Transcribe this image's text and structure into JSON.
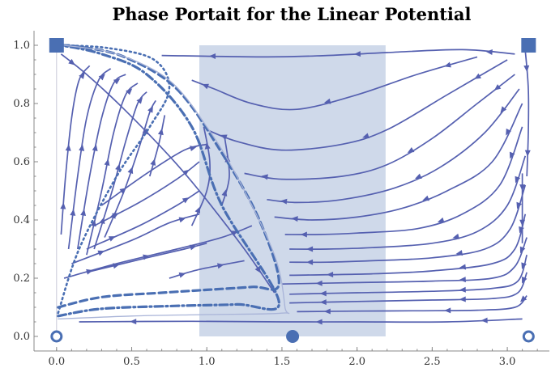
{
  "chart_data": {
    "type": "streamplot",
    "title": "Phase Portait for the Linear Potential",
    "xlabel": "",
    "ylabel": "",
    "xlim": [
      -0.15,
      3.28
    ],
    "ylim": [
      -0.05,
      1.05
    ],
    "x_ticks": [
      0.0,
      0.5,
      1.0,
      1.5,
      2.0,
      2.5,
      3.0
    ],
    "x_tick_labels": [
      "0.0",
      "0.5",
      "1.0",
      "1.5",
      "2.0",
      "2.5",
      "3.0"
    ],
    "y_ticks": [
      0.0,
      0.2,
      0.4,
      0.6,
      0.8,
      1.0
    ],
    "y_tick_labels": [
      "0.0",
      "0.2",
      "0.4",
      "0.6",
      "0.8",
      "1.0"
    ],
    "shaded_region": {
      "x": [
        0.95,
        2.19
      ],
      "y": [
        0.0,
        1.0
      ],
      "color": "#cfd9ea"
    },
    "fixed_points": [
      {
        "x": 0.0,
        "y": 0.0,
        "marker": "open-circle"
      },
      {
        "x": 1.5708,
        "y": 0.0,
        "marker": "filled-circle"
      },
      {
        "x": 3.1416,
        "y": 0.0,
        "marker": "open-circle"
      },
      {
        "x": 0.0,
        "y": 1.0,
        "marker": "filled-square"
      },
      {
        "x": 3.1416,
        "y": 1.0,
        "marker": "filled-square"
      }
    ],
    "special_curves": [
      {
        "style": "dashed",
        "points": [
          [
            0.01,
            0.1
          ],
          [
            0.3,
            0.135
          ],
          [
            0.7,
            0.15
          ],
          [
            1.0,
            0.16
          ],
          [
            1.3,
            0.17
          ],
          [
            1.48,
            0.18
          ],
          [
            1.35,
            0.4
          ],
          [
            1.1,
            0.63
          ],
          [
            0.8,
            0.85
          ],
          [
            0.45,
            0.96
          ],
          [
            0.15,
            0.995
          ],
          [
            0.02,
            1.0
          ]
        ]
      },
      {
        "style": "dash-dot",
        "points": [
          [
            0.01,
            0.07
          ],
          [
            0.3,
            0.095
          ],
          [
            0.8,
            0.105
          ],
          [
            1.2,
            0.11
          ],
          [
            1.48,
            0.12
          ],
          [
            1.1,
            0.45
          ],
          [
            0.9,
            0.72
          ],
          [
            0.6,
            0.9
          ],
          [
            0.3,
            0.97
          ],
          [
            0.03,
            1.0
          ]
        ]
      },
      {
        "style": "dotted",
        "points": [
          [
            0.01,
            0.08
          ],
          [
            0.15,
            0.3
          ],
          [
            0.4,
            0.55
          ],
          [
            0.62,
            0.72
          ],
          [
            0.75,
            0.85
          ],
          [
            0.65,
            0.95
          ],
          [
            0.35,
            0.99
          ],
          [
            0.03,
            1.0
          ]
        ]
      },
      {
        "style": "solid-light",
        "points": [
          [
            0.01,
            0.06
          ],
          [
            0.5,
            0.07
          ],
          [
            1.0,
            0.075
          ],
          [
            1.5,
            0.08
          ],
          [
            1.52,
            0.1
          ],
          [
            1.45,
            0.28
          ],
          [
            1.2,
            0.55
          ],
          [
            1.0,
            0.72
          ],
          [
            0.75,
            0.88
          ],
          [
            0.4,
            0.97
          ],
          [
            0.05,
            1.0
          ]
        ]
      }
    ],
    "stream_lines": [
      [
        [
          3.05,
          0.97
        ],
        [
          2.7,
          0.985
        ],
        [
          2.2,
          0.975
        ],
        [
          1.8,
          0.965
        ],
        [
          1.4,
          0.96
        ],
        [
          0.7,
          0.965
        ]
      ],
      [
        [
          2.8,
          0.96
        ],
        [
          2.4,
          0.9
        ],
        [
          2.0,
          0.83
        ],
        [
          1.6,
          0.78
        ],
        [
          1.3,
          0.8
        ],
        [
          1.05,
          0.85
        ],
        [
          0.9,
          0.88
        ]
      ],
      [
        [
          3.0,
          0.95
        ],
        [
          2.6,
          0.83
        ],
        [
          2.2,
          0.71
        ],
        [
          1.9,
          0.66
        ],
        [
          1.5,
          0.64
        ],
        [
          1.2,
          0.67
        ],
        [
          1.0,
          0.71
        ]
      ],
      [
        [
          3.05,
          0.9
        ],
        [
          2.8,
          0.8
        ],
        [
          2.5,
          0.68
        ],
        [
          2.2,
          0.59
        ],
        [
          1.9,
          0.55
        ],
        [
          1.5,
          0.54
        ],
        [
          1.25,
          0.56
        ]
      ],
      [
        [
          3.08,
          0.85
        ],
        [
          2.85,
          0.7
        ],
        [
          2.55,
          0.58
        ],
        [
          2.25,
          0.51
        ],
        [
          1.9,
          0.47
        ],
        [
          1.6,
          0.46
        ],
        [
          1.4,
          0.47
        ]
      ],
      [
        [
          3.1,
          0.8
        ],
        [
          2.9,
          0.6
        ],
        [
          2.6,
          0.5
        ],
        [
          2.3,
          0.44
        ],
        [
          2.0,
          0.41
        ],
        [
          1.7,
          0.4
        ],
        [
          1.45,
          0.41
        ]
      ],
      [
        [
          3.1,
          0.72
        ],
        [
          2.95,
          0.52
        ],
        [
          2.7,
          0.42
        ],
        [
          2.4,
          0.37
        ],
        [
          2.0,
          0.355
        ],
        [
          1.75,
          0.35
        ],
        [
          1.52,
          0.35
        ]
      ],
      [
        [
          3.12,
          0.62
        ],
        [
          3.0,
          0.45
        ],
        [
          2.8,
          0.36
        ],
        [
          2.5,
          0.32
        ],
        [
          2.1,
          0.305
        ],
        [
          1.8,
          0.3
        ],
        [
          1.55,
          0.3
        ]
      ],
      [
        [
          3.12,
          0.52
        ],
        [
          3.02,
          0.37
        ],
        [
          2.85,
          0.3
        ],
        [
          2.5,
          0.27
        ],
        [
          2.1,
          0.26
        ],
        [
          1.8,
          0.255
        ],
        [
          1.55,
          0.255
        ]
      ],
      [
        [
          3.12,
          0.42
        ],
        [
          3.05,
          0.3
        ],
        [
          2.9,
          0.25
        ],
        [
          2.5,
          0.225
        ],
        [
          2.1,
          0.215
        ],
        [
          1.55,
          0.21
        ]
      ],
      [
        [
          3.13,
          0.34
        ],
        [
          3.05,
          0.24
        ],
        [
          2.9,
          0.2
        ],
        [
          2.5,
          0.19
        ],
        [
          2.0,
          0.185
        ],
        [
          1.5,
          0.18
        ]
      ],
      [
        [
          3.13,
          0.28
        ],
        [
          3.07,
          0.19
        ],
        [
          2.9,
          0.165
        ],
        [
          2.5,
          0.155
        ],
        [
          2.0,
          0.15
        ],
        [
          1.55,
          0.145
        ]
      ],
      [
        [
          3.13,
          0.22
        ],
        [
          3.07,
          0.15
        ],
        [
          2.9,
          0.13
        ],
        [
          2.5,
          0.125
        ],
        [
          2.0,
          0.12
        ],
        [
          1.55,
          0.115
        ]
      ],
      [
        [
          3.13,
          0.14
        ],
        [
          3.05,
          0.1
        ],
        [
          2.8,
          0.09
        ],
        [
          2.4,
          0.088
        ],
        [
          2.0,
          0.087
        ],
        [
          1.6,
          0.085
        ]
      ],
      [
        [
          3.1,
          0.06
        ],
        [
          2.6,
          0.05
        ],
        [
          2.0,
          0.05
        ],
        [
          1.5,
          0.05
        ],
        [
          0.9,
          0.052
        ],
        [
          0.15,
          0.05
        ]
      ],
      [
        [
          3.12,
          0.98
        ],
        [
          3.14,
          0.85
        ],
        [
          3.14,
          0.7
        ],
        [
          3.13,
          0.55
        ]
      ],
      [
        [
          3.1,
          0.56
        ],
        [
          3.1,
          0.45
        ],
        [
          3.1,
          0.32
        ]
      ],
      [
        [
          0.03,
          0.97
        ],
        [
          0.2,
          0.9
        ],
        [
          0.45,
          0.78
        ],
        [
          0.75,
          0.62
        ],
        [
          0.95,
          0.5
        ],
        [
          1.25,
          0.3
        ],
        [
          1.45,
          0.15
        ]
      ],
      [
        [
          0.05,
          0.2
        ],
        [
          0.4,
          0.25
        ],
        [
          0.8,
          0.3
        ],
        [
          1.1,
          0.34
        ],
        [
          1.3,
          0.38
        ]
      ],
      [
        [
          0.2,
          0.22
        ],
        [
          0.6,
          0.27
        ],
        [
          0.85,
          0.3
        ],
        [
          1.0,
          0.32
        ]
      ],
      [
        [
          0.1,
          0.25
        ],
        [
          0.5,
          0.33
        ],
        [
          0.75,
          0.39
        ],
        [
          0.95,
          0.42
        ]
      ],
      [
        [
          0.2,
          0.3
        ],
        [
          0.55,
          0.38
        ],
        [
          0.8,
          0.45
        ],
        [
          0.95,
          0.5
        ]
      ],
      [
        [
          0.25,
          0.38
        ],
        [
          0.55,
          0.46
        ],
        [
          0.8,
          0.54
        ],
        [
          0.95,
          0.6
        ]
      ],
      [
        [
          0.3,
          0.45
        ],
        [
          0.6,
          0.56
        ],
        [
          0.85,
          0.64
        ],
        [
          1.0,
          0.66
        ]
      ],
      [
        [
          0.03,
          0.35
        ],
        [
          0.06,
          0.55
        ],
        [
          0.1,
          0.75
        ],
        [
          0.15,
          0.88
        ],
        [
          0.22,
          0.93
        ]
      ],
      [
        [
          0.08,
          0.3
        ],
        [
          0.14,
          0.55
        ],
        [
          0.2,
          0.75
        ],
        [
          0.28,
          0.88
        ],
        [
          0.36,
          0.92
        ]
      ],
      [
        [
          0.14,
          0.3
        ],
        [
          0.22,
          0.55
        ],
        [
          0.3,
          0.75
        ],
        [
          0.38,
          0.87
        ],
        [
          0.46,
          0.9
        ]
      ],
      [
        [
          0.2,
          0.28
        ],
        [
          0.3,
          0.5
        ],
        [
          0.38,
          0.7
        ],
        [
          0.46,
          0.83
        ],
        [
          0.54,
          0.87
        ]
      ],
      [
        [
          0.25,
          0.3
        ],
        [
          0.37,
          0.5
        ],
        [
          0.46,
          0.67
        ],
        [
          0.54,
          0.8
        ],
        [
          0.6,
          0.84
        ]
      ],
      [
        [
          0.32,
          0.34
        ],
        [
          0.45,
          0.5
        ],
        [
          0.55,
          0.65
        ],
        [
          0.62,
          0.77
        ],
        [
          0.66,
          0.81
        ]
      ],
      [
        [
          0.62,
          0.55
        ],
        [
          0.68,
          0.66
        ],
        [
          0.72,
          0.76
        ]
      ],
      [
        [
          0.9,
          0.38
        ],
        [
          1.0,
          0.5
        ],
        [
          1.02,
          0.6
        ],
        [
          0.98,
          0.72
        ]
      ],
      [
        [
          1.1,
          0.45
        ],
        [
          1.15,
          0.55
        ],
        [
          1.12,
          0.68
        ]
      ],
      [
        [
          0.75,
          0.2
        ],
        [
          0.95,
          0.23
        ],
        [
          1.25,
          0.26
        ]
      ]
    ]
  }
}
